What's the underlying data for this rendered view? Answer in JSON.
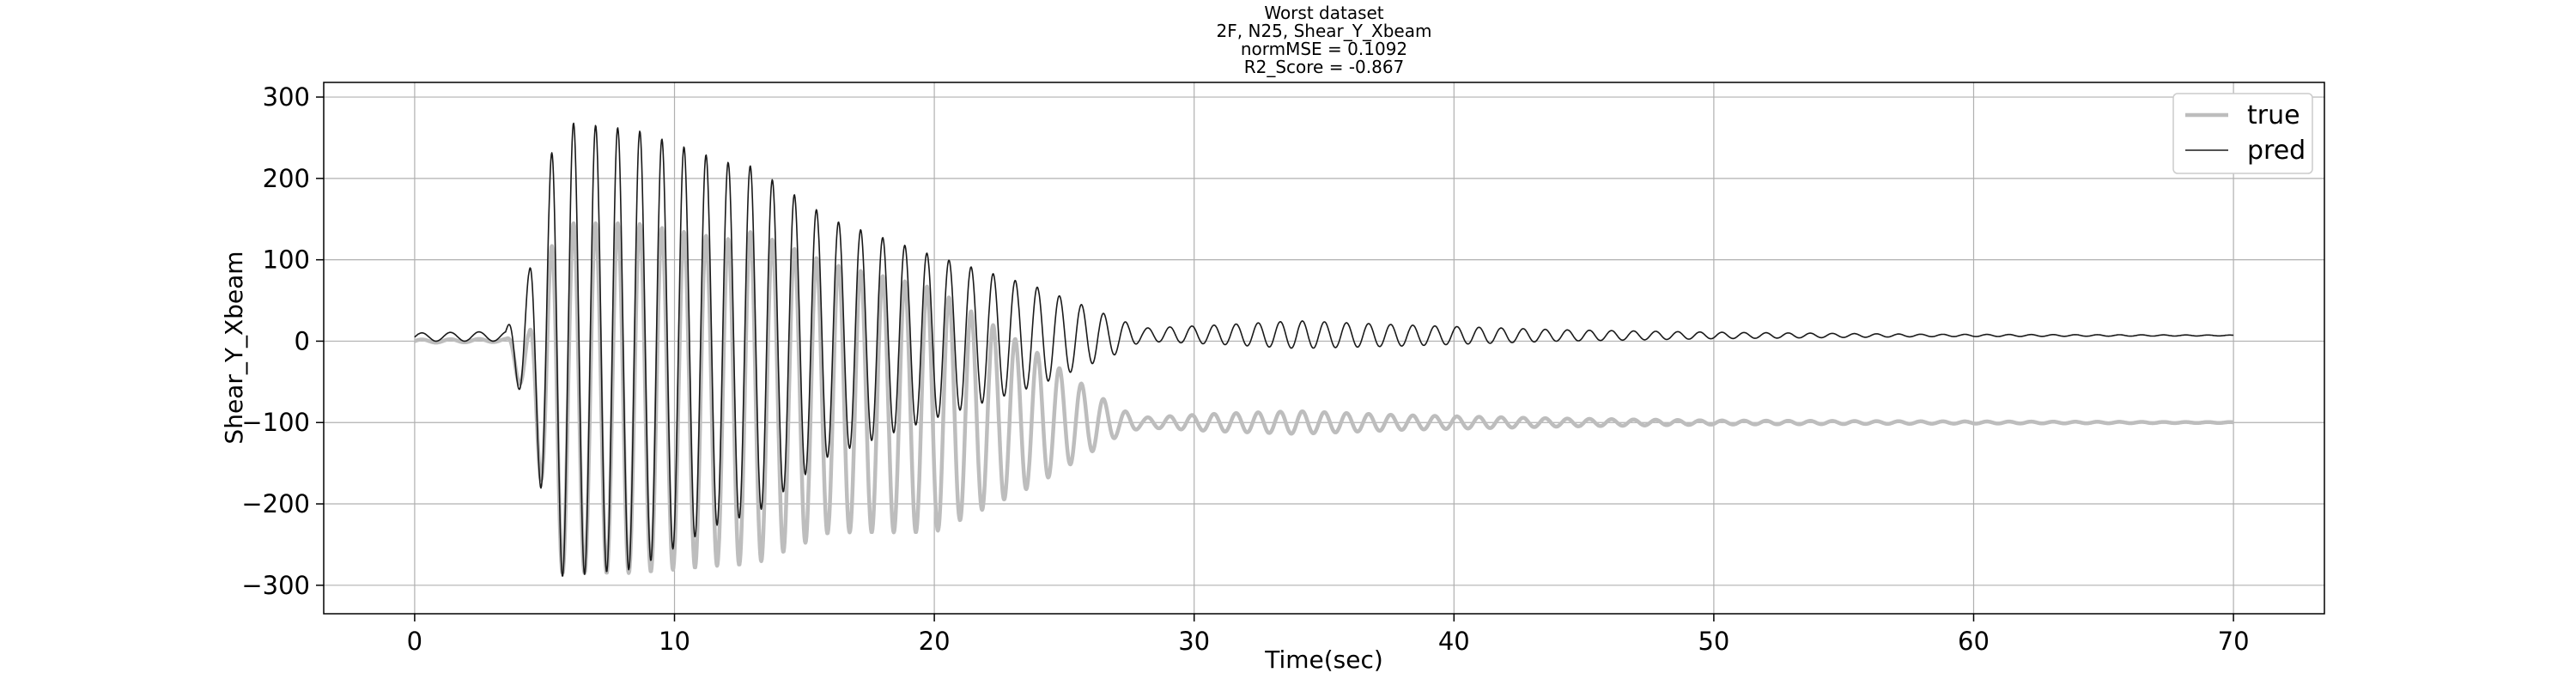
{
  "title_lines": [
    "Worst dataset",
    "2F, N25, Shear_Y_Xbeam",
    "normMSE = 0.1092",
    "R2_Score = -0.867"
  ],
  "chart_data": {
    "type": "line",
    "title": "Worst dataset\n2F, N25, Shear_Y_Xbeam\nnormMSE = 0.1092\nR2_Score = -0.867",
    "xlabel": "Time(sec)",
    "ylabel": "Shear_Y_Xbeam",
    "xlim": [
      -3.5,
      73.5
    ],
    "ylim": [
      -335,
      318
    ],
    "xticks": [
      0,
      10,
      20,
      30,
      40,
      50,
      60,
      70
    ],
    "yticks": [
      -300,
      -200,
      -100,
      0,
      100,
      200,
      300
    ],
    "xtick_labels": [
      "0",
      "10",
      "20",
      "30",
      "40",
      "50",
      "60",
      "70"
    ],
    "ytick_labels": [
      "−300",
      "−200",
      "−100",
      "0",
      "100",
      "200",
      "300"
    ],
    "grid": true,
    "legend": {
      "position": "top-right",
      "entries": [
        "true",
        "pred"
      ]
    },
    "series": [
      {
        "name": "true",
        "color": "#bdbdbd",
        "style": "thick",
        "description_points": {
          "x": [
            0,
            3.5,
            4.4,
            5.0,
            5.5,
            6.0,
            6.5,
            7.0,
            7.5,
            8.0,
            8.5,
            9.0,
            10.0,
            11.0,
            12.0,
            13.0,
            15.0,
            17.0,
            20.0,
            25.0,
            28.0,
            35.0,
            45.0,
            50.0,
            70.0
          ],
          "y": [
            -5,
            0,
            -60,
            -20,
            -290,
            150,
            -260,
            200,
            -280,
            150,
            -290,
            200,
            -280,
            120,
            -270,
            130,
            -260,
            30,
            -250,
            -180,
            -100,
            -110,
            -100,
            -100,
            -100
          ]
        }
      },
      {
        "name": "pred",
        "color": "#1a1a1a",
        "style": "thin",
        "description_points": {
          "x": [
            0,
            3.5,
            4.4,
            5.0,
            5.5,
            6.0,
            6.5,
            7.0,
            7.5,
            8.0,
            8.5,
            9.0,
            10.0,
            11.0,
            12.0,
            13.0,
            15.0,
            17.0,
            20.0,
            25.0,
            28.0,
            35.0,
            45.0,
            50.0,
            70.0
          ],
          "y": [
            -10,
            10,
            -80,
            170,
            -260,
            285,
            -300,
            255,
            -280,
            260,
            -270,
            190,
            -170,
            220,
            -220,
            215,
            -120,
            130,
            100,
            60,
            10,
            20,
            10,
            8,
            7
          ]
        }
      }
    ]
  }
}
